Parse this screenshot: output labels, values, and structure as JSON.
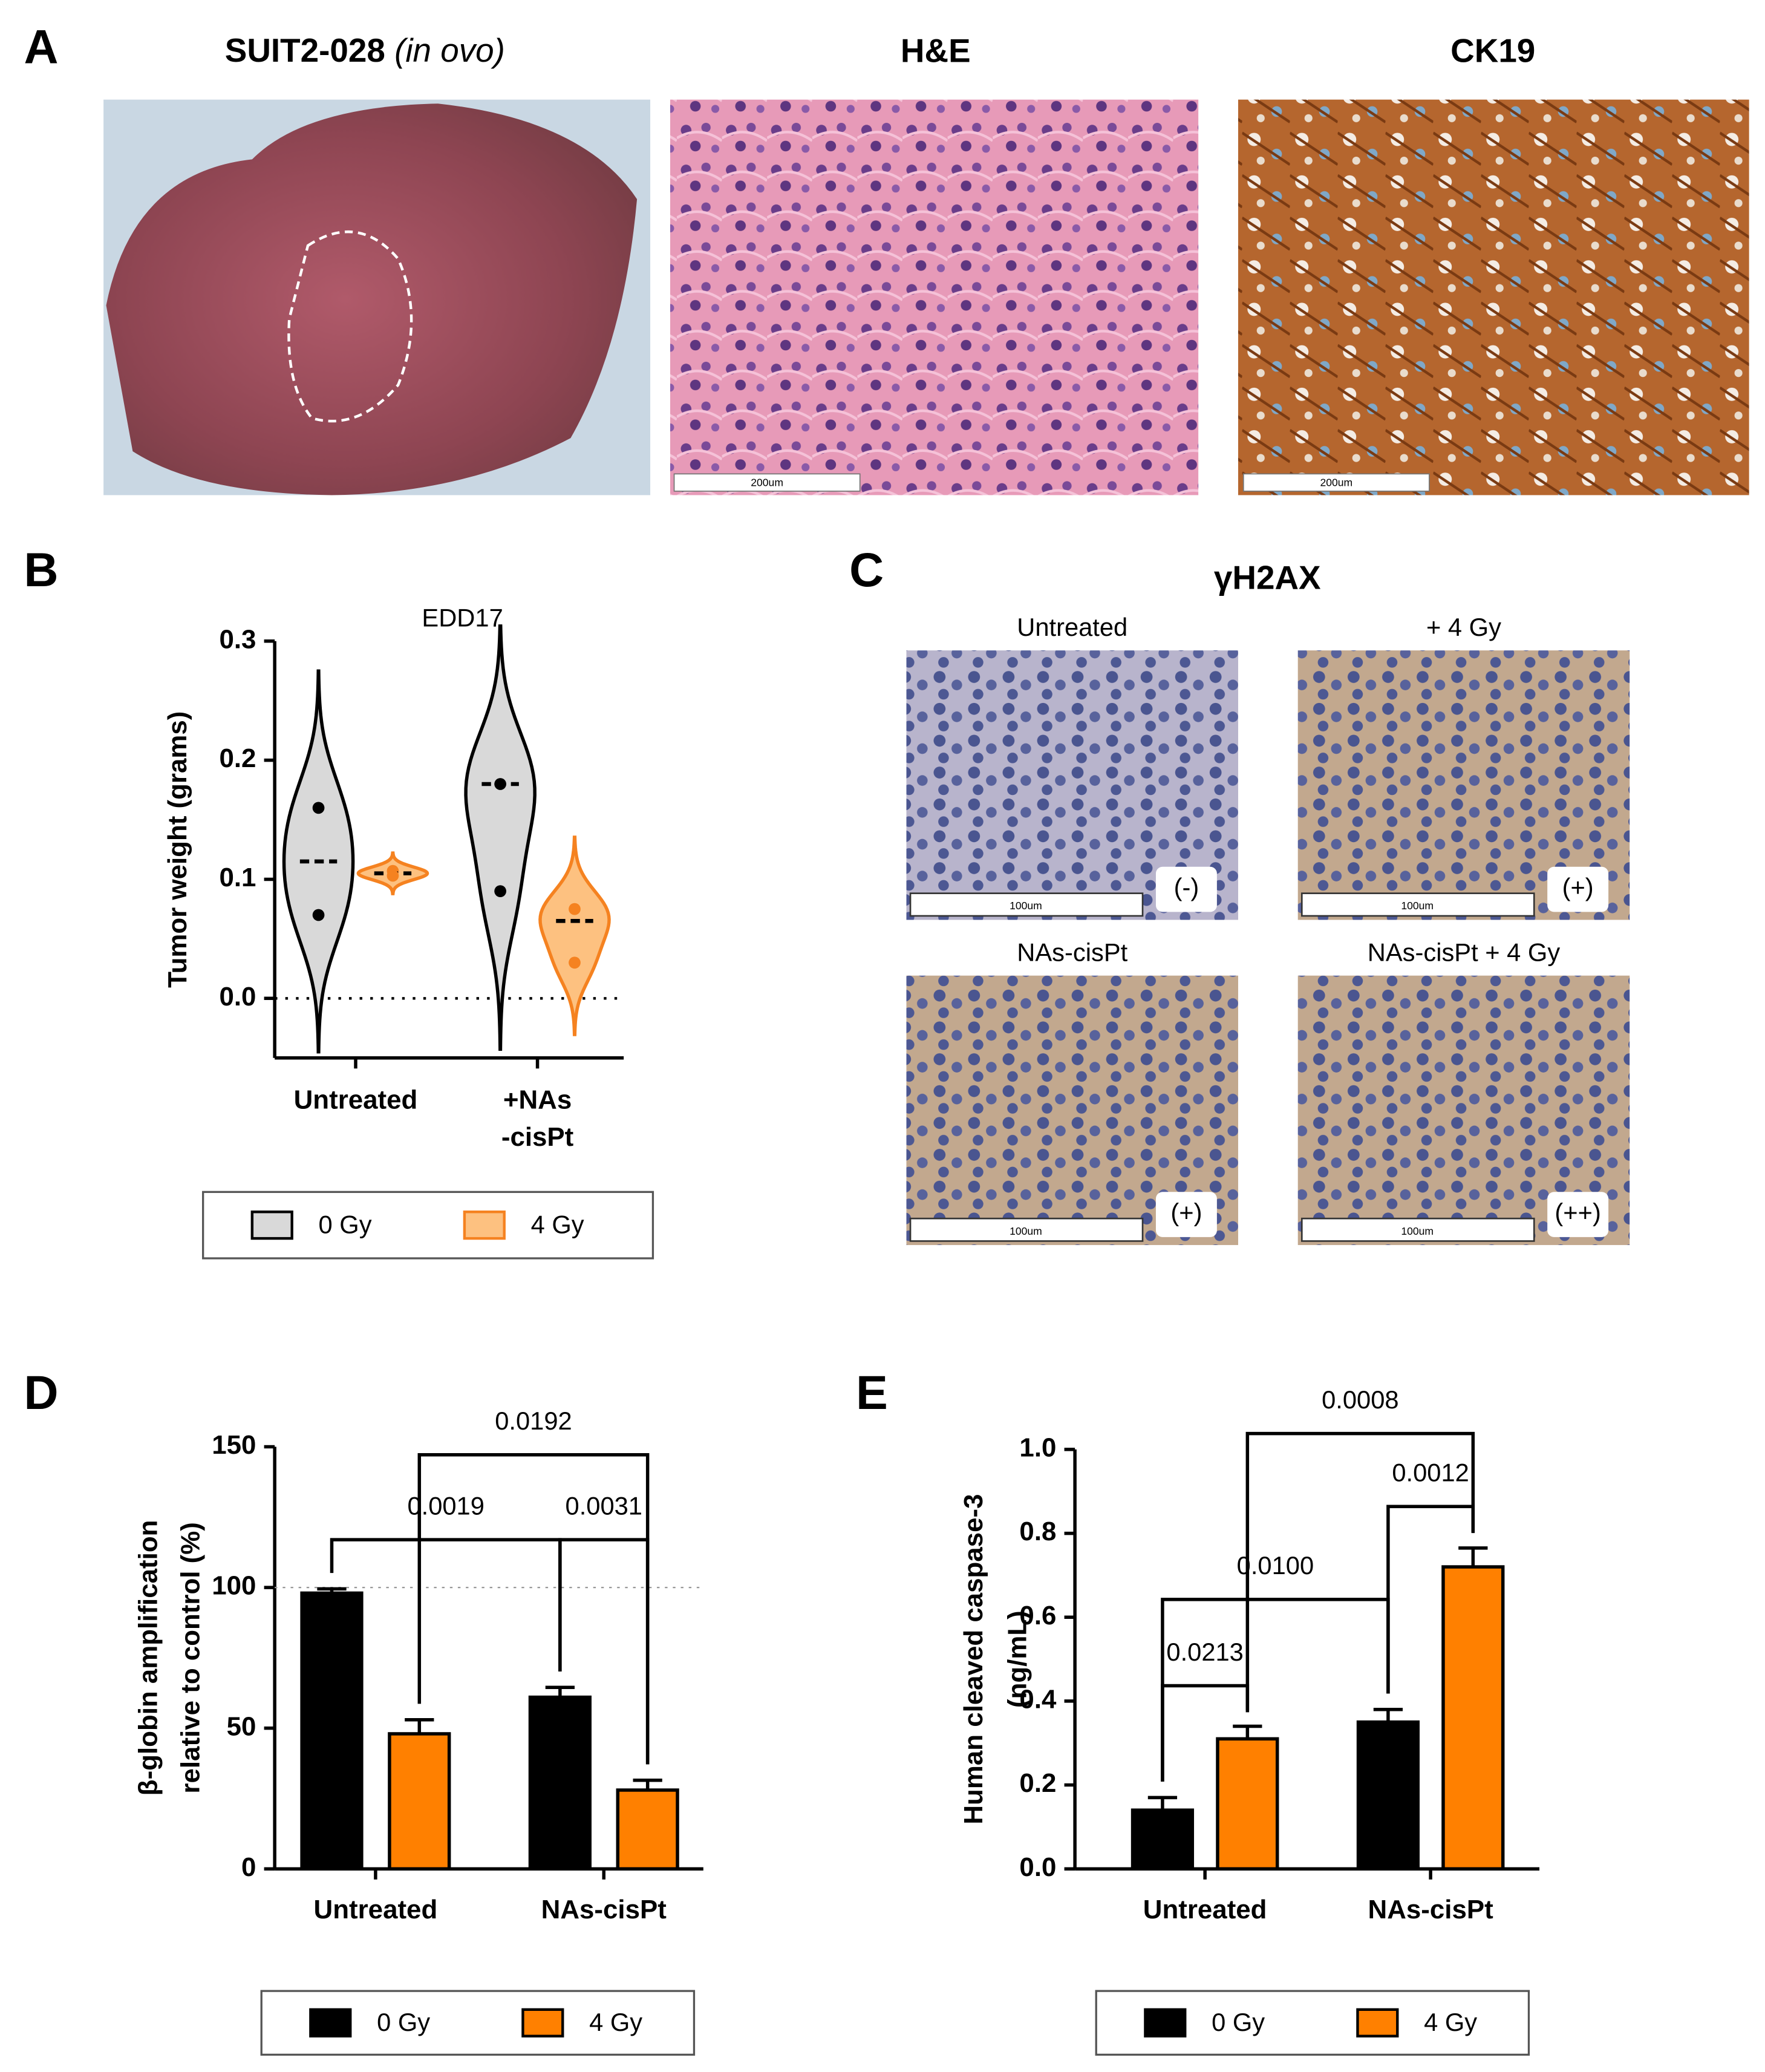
{
  "panels": [
    "A",
    "B",
    "C",
    "D",
    "E"
  ],
  "panel_a": {
    "title": "SUIT2-028",
    "title_note": "(in ovo)",
    "images": [
      {
        "title": "H&E",
        "scale": "200um"
      },
      {
        "title": "CK19",
        "scale": "200um"
      }
    ]
  },
  "panel_c": {
    "title": "γH2AX",
    "images": [
      {
        "caption": "Untreated",
        "scale": "100um",
        "grade": "(-)"
      },
      {
        "caption": "+ 4 Gy",
        "scale": "100um",
        "grade": "(+)"
      },
      {
        "caption": "NAs-cisPt",
        "scale": "100um",
        "grade": "(+)"
      },
      {
        "caption": "NAs-cisPt + 4 Gy",
        "scale": "100um",
        "grade": "(++)"
      }
    ]
  },
  "chart_data": [
    {
      "type": "violin",
      "title": "EDD17",
      "ylabel": [
        "Tumor weight (grams)"
      ],
      "categories": [
        [
          "Untreated"
        ],
        [
          "+NAs",
          "-cisPt"
        ]
      ],
      "series": [
        {
          "name": "0 Gy",
          "color": "#d9d9d9",
          "edgecolor": "#000000",
          "values": [
            [
              0.16,
              0.115,
              0.07
            ],
            [
              0.18,
              0.18,
              0.09
            ]
          ]
        },
        {
          "name": "4 Gy",
          "color": "#fdc180",
          "edgecolor": "#f58220",
          "values": [
            [
              0.107,
              0.105,
              0.103
            ],
            [
              0.075,
              0.065,
              0.03
            ]
          ]
        }
      ],
      "ylim": [
        -0.05,
        0.3
      ],
      "yticks": [
        {
          "value": 0,
          "label": "0.0"
        },
        0.1,
        0.2,
        0.3
      ],
      "reference_line": 0,
      "grid": false
    },
    {
      "type": "bar",
      "ylabel": [
        "β-globin amplification",
        "relative to control (%)"
      ],
      "categories": [
        [
          "Untreated"
        ],
        [
          "NAs-cisPt"
        ]
      ],
      "series": [
        {
          "name": "0 Gy",
          "color": "#000000",
          "values": [
            98,
            61
          ],
          "errors": [
            1.5,
            3.5
          ]
        },
        {
          "name": "4 Gy",
          "color": "#ff8000",
          "values": [
            48,
            28
          ],
          "errors": [
            5,
            3.5
          ]
        }
      ],
      "ylim": [
        0,
        150
      ],
      "yticks": [
        0,
        50,
        100,
        150
      ],
      "reference_line": 100,
      "grid": false,
      "brackets": [
        {
          "label": "0.0019",
          "from": [
            0,
            0
          ],
          "to": [
            1,
            0
          ]
        },
        {
          "label": "0.0031",
          "from": [
            1,
            0
          ],
          "to": [
            1,
            1
          ]
        },
        {
          "label": "0.0192",
          "from": [
            0,
            1
          ],
          "to": [
            1,
            1
          ]
        }
      ]
    },
    {
      "type": "bar",
      "ylabel": [
        "Human cleaved caspase-3",
        "(ng/mL)"
      ],
      "categories": [
        [
          "Untreated"
        ],
        [
          "NAs-cisPt"
        ]
      ],
      "series": [
        {
          "name": "0 Gy",
          "color": "#000000",
          "values": [
            0.14,
            0.35
          ],
          "errors": [
            0.03,
            0.03
          ]
        },
        {
          "name": "4 Gy",
          "color": "#ff8000",
          "values": [
            0.31,
            0.72
          ],
          "errors": [
            0.03,
            0.045
          ]
        }
      ],
      "ylim": [
        0,
        1
      ],
      "yticks": [
        {
          "value": 0,
          "label": "0.0"
        },
        0.2,
        0.4,
        0.6,
        0.8,
        {
          "value": 1,
          "label": "1.0"
        }
      ],
      "grid": false,
      "brackets": [
        {
          "label": "0.0213",
          "from": [
            0,
            0
          ],
          "to": [
            0,
            1
          ]
        },
        {
          "label": "0.0100",
          "from": [
            0,
            0
          ],
          "to": [
            1,
            0
          ]
        },
        {
          "label": "0.0012",
          "from": [
            1,
            0
          ],
          "to": [
            1,
            1
          ]
        },
        {
          "label": "0.0008",
          "from": [
            0,
            1
          ],
          "to": [
            1,
            1
          ]
        }
      ]
    }
  ]
}
